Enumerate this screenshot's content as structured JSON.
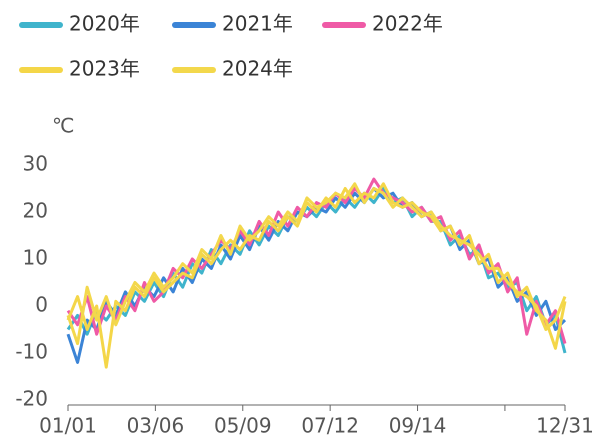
{
  "chart_data": {
    "type": "line",
    "y_unit": "℃",
    "x": [
      1,
      8,
      15,
      22,
      29,
      36,
      43,
      50,
      57,
      64,
      71,
      78,
      85,
      92,
      99,
      106,
      113,
      120,
      127,
      134,
      141,
      148,
      155,
      162,
      169,
      176,
      183,
      190,
      197,
      204,
      211,
      218,
      225,
      232,
      239,
      246,
      253,
      260,
      267,
      274,
      281,
      288,
      295,
      302,
      309,
      316,
      323,
      330,
      337,
      344,
      351,
      358,
      365
    ],
    "xlim": [
      1,
      365
    ],
    "xticks": [
      {
        "value": 1,
        "label": "01/01"
      },
      {
        "value": 65,
        "label": "03/06"
      },
      {
        "value": 129,
        "label": "05/09"
      },
      {
        "value": 193,
        "label": "07/12"
      },
      {
        "value": 257,
        "label": "09/14"
      },
      {
        "value": 321,
        "label": null
      },
      {
        "value": 365,
        "label": "12/31"
      }
    ],
    "ylim": [
      -20,
      30
    ],
    "yticks": [
      30,
      20,
      10,
      0,
      -10,
      -20
    ],
    "series": [
      {
        "name": "2020年",
        "color": "#3fb4cc",
        "values": [
          -5,
          -2,
          -6,
          -1,
          -3,
          0,
          -2,
          3,
          1,
          5,
          2,
          7,
          4,
          9,
          7,
          12,
          9,
          13,
          11,
          16,
          13,
          17,
          15,
          19,
          18,
          21,
          19,
          22,
          20,
          23,
          21,
          24,
          22,
          25,
          22,
          23,
          19,
          21,
          18,
          18,
          13,
          15,
          11,
          12,
          6,
          7,
          4,
          5,
          -1,
          2,
          -4,
          -2,
          -10
        ]
      },
      {
        "name": "2021年",
        "color": "#3b84d6",
        "values": [
          -6,
          -12,
          -3,
          -5,
          1,
          -2,
          3,
          0,
          4,
          2,
          6,
          3,
          8,
          5,
          10,
          8,
          13,
          10,
          15,
          12,
          17,
          14,
          18,
          16,
          20,
          19,
          21,
          20,
          23,
          21,
          24,
          22,
          25,
          23,
          24,
          21,
          22,
          19,
          20,
          16,
          17,
          12,
          14,
          9,
          10,
          4,
          6,
          1,
          3,
          -2,
          1,
          -5,
          -3
        ]
      },
      {
        "name": "2022年",
        "color": "#ef5aa6",
        "values": [
          -1,
          -4,
          2,
          -6,
          0,
          -3,
          2,
          -1,
          5,
          1,
          3,
          8,
          6,
          10,
          8,
          11,
          14,
          12,
          16,
          13,
          18,
          15,
          20,
          17,
          21,
          19,
          22,
          21,
          24,
          22,
          25,
          23,
          27,
          24,
          23,
          22,
          20,
          21,
          18,
          19,
          14,
          16,
          10,
          13,
          7,
          9,
          3,
          6,
          -6,
          1,
          -4,
          -1,
          -8
        ]
      },
      {
        "name": "2023年",
        "color": "#f4d648",
        "values": [
          -3,
          2,
          -5,
          0,
          -13,
          1,
          -1,
          4,
          2,
          6,
          3,
          5,
          7,
          6,
          11,
          9,
          12,
          14,
          12,
          15,
          14,
          18,
          16,
          19,
          17,
          22,
          20,
          23,
          21,
          25,
          22,
          24,
          23,
          26,
          22,
          21,
          22,
          20,
          19,
          16,
          17,
          13,
          15,
          9,
          11,
          5,
          7,
          2,
          4,
          -1,
          -3,
          -9,
          1
        ]
      },
      {
        "name": "2024年",
        "color": "#f3d84c",
        "values": [
          -2,
          -8,
          4,
          -3,
          2,
          -4,
          1,
          5,
          3,
          7,
          4,
          6,
          9,
          7,
          12,
          10,
          15,
          11,
          17,
          14,
          16,
          19,
          17,
          20,
          18,
          23,
          21,
          22,
          24,
          23,
          26,
          22,
          25,
          24,
          21,
          23,
          21,
          19,
          20,
          17,
          15,
          14,
          13,
          11,
          8,
          8,
          5,
          3,
          2,
          0,
          -5,
          -3,
          2
        ]
      }
    ]
  }
}
